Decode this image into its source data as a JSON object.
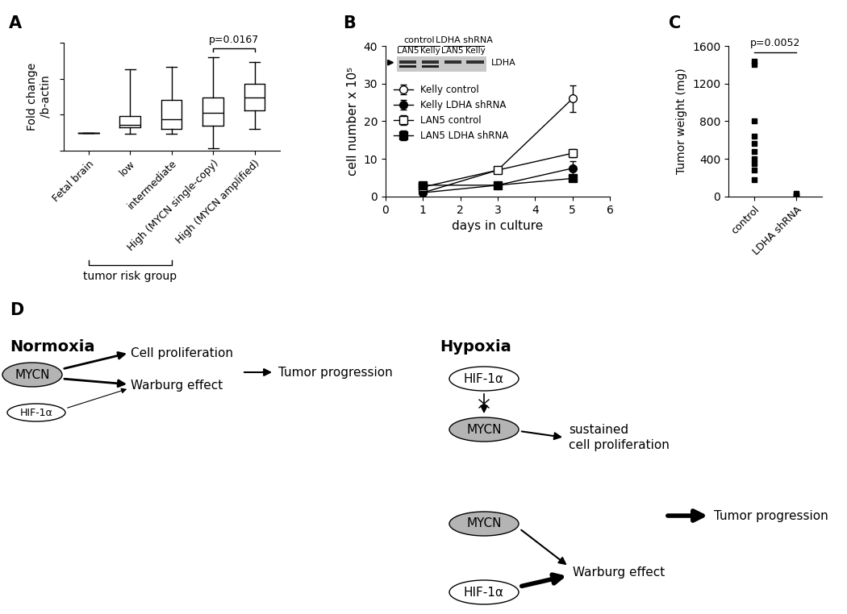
{
  "chart_data": [
    {
      "panel": "A",
      "type": "box",
      "y_label": "Fold change\n/b-actin",
      "categories": [
        "Fetal brain",
        "low",
        "intermediate",
        "High (MYCN single-copy)",
        "High (MYCN amplified)"
      ],
      "min": [
        0.49,
        0.47,
        0.47,
        0.07,
        0.6
      ],
      "q1": [
        0.49,
        0.65,
        0.6,
        0.7,
        1.12
      ],
      "median": [
        0.49,
        0.72,
        0.88,
        1.05,
        1.47
      ],
      "q3": [
        0.49,
        0.95,
        1.4,
        1.47,
        1.86
      ],
      "max": [
        0.49,
        2.26,
        2.33,
        2.6,
        2.47
      ],
      "ylim": [
        0,
        3
      ],
      "yticks": [
        0,
        1,
        2,
        3
      ],
      "tick_labels": "x",
      "color": "#000000",
      "annotations": [
        {
          "text": "p=0.0167",
          "between": [
            "High (MYCN single-copy)",
            "High (MYCN amplified)"
          ]
        }
      ],
      "group_label": {
        "text": "tumor risk group",
        "spans": [
          "Fetal brain",
          "intermediate"
        ]
      }
    },
    {
      "panel": "B",
      "type": "line",
      "x_label": "days in culture",
      "y_label": "cell number x 10⁵",
      "xlim": [
        0,
        6
      ],
      "xticks": [
        0,
        1,
        2,
        3,
        4,
        5,
        6
      ],
      "ylim": [
        0,
        40
      ],
      "yticks": [
        0,
        10,
        20,
        30,
        40
      ],
      "legend": "upper left",
      "x": [
        1,
        3,
        5
      ],
      "series": [
        {
          "name": "Kelly control",
          "color": "#000000",
          "marker": "open circle",
          "values": [
            1.0,
            7.0,
            26.0
          ],
          "errors": [
            0.3,
            0.5,
            3.5
          ]
        },
        {
          "name": "Kelly LDHA shRNA",
          "color": "#000000",
          "marker": "filled circle",
          "values": [
            1.0,
            3.0,
            7.5
          ],
          "errors": [
            0.2,
            0.4,
            1.8
          ]
        },
        {
          "name": "LAN5 control",
          "color": "#000000",
          "marker": "open square",
          "values": [
            2.5,
            7.0,
            11.5
          ],
          "errors": [
            0.3,
            0.5,
            1.0
          ]
        },
        {
          "name": "LAN5 LDHA shRNA",
          "color": "#000000",
          "marker": "filled square",
          "values": [
            3.0,
            3.0,
            4.8
          ],
          "errors": [
            0.3,
            0.3,
            0.5
          ]
        }
      ],
      "inset": {
        "groups": [
          "control",
          "LDHA shRNA"
        ],
        "lanes": [
          "LAN5",
          "Kelly",
          "LAN5",
          "Kelly"
        ],
        "band": "LDHA"
      }
    },
    {
      "panel": "C",
      "type": "scatter",
      "y_label": "Tumor weight (mg)",
      "categories": [
        "control",
        "LDHA shRNA"
      ],
      "values": [
        [
          1440,
          1400,
          800,
          640,
          560,
          480,
          400,
          350,
          280,
          180
        ],
        [
          30,
          20,
          10
        ]
      ],
      "marker": "square",
      "color": "#000000",
      "ylim": [
        0,
        1600
      ],
      "yticks": [
        0,
        400,
        800,
        1200,
        1600
      ],
      "annotations": [
        {
          "text": "p=0.0052",
          "between": [
            "control",
            "LDHA shRNA"
          ]
        }
      ]
    }
  ],
  "diagram": {
    "panel": "D",
    "normoxia": {
      "title": "Normoxia",
      "mycn": "MYCN",
      "hif": "HIF-1α",
      "proliferation": "Cell proliferation",
      "warburg": "Warburg effect",
      "outcome": "Tumor progression"
    },
    "hypoxia": {
      "title": "Hypoxia",
      "hif": "HIF-1α",
      "mycn": "MYCN",
      "proliferation": "sustained\ncell proliferation",
      "mycn2": "MYCN",
      "hif2": "HIF-1α",
      "warburg": "Warburg effect",
      "outcome": "Tumor progression"
    }
  }
}
